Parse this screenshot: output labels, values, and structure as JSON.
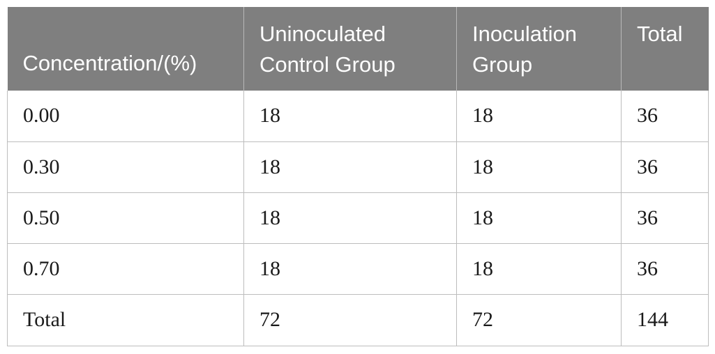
{
  "table": {
    "headers": [
      "Concentration/(%)",
      "Uninoculated Control Group",
      "Inoculation Group",
      "Total"
    ],
    "rows": [
      [
        "0.00",
        "18",
        "18",
        "36"
      ],
      [
        "0.30",
        "18",
        "18",
        "36"
      ],
      [
        "0.50",
        "18",
        "18",
        "36"
      ],
      [
        "0.70",
        "18",
        "18",
        "36"
      ],
      [
        "Total",
        "72",
        "72",
        "144"
      ]
    ]
  },
  "colors": {
    "header_background": "#7f7f7f",
    "header_text": "#ffffff",
    "grid_line": "#bdbdbd"
  }
}
